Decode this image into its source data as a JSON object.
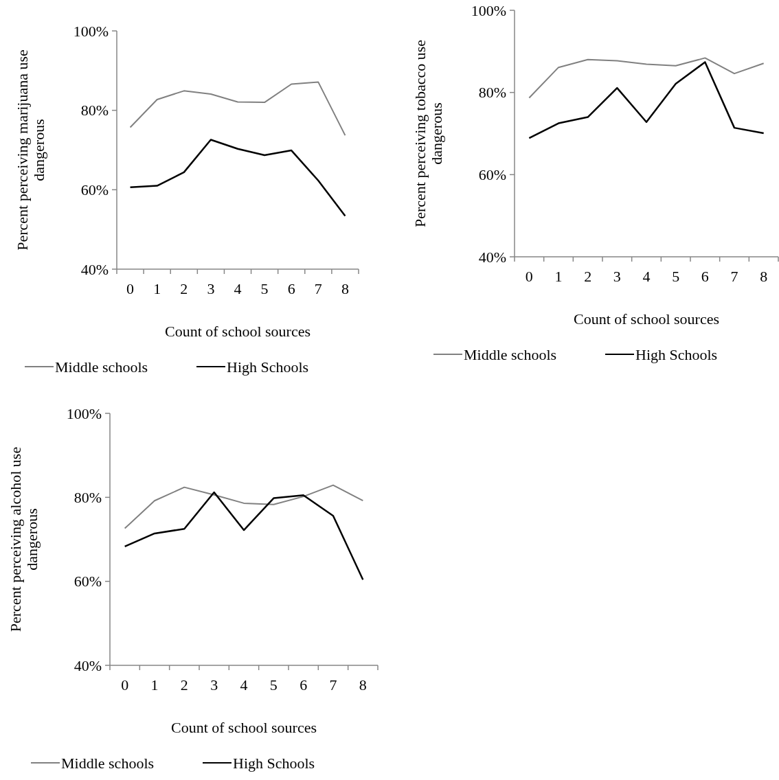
{
  "chart_data": [
    {
      "type": "line",
      "xlabel": "Count of school sources",
      "ylabel": "Percent perceiving marijuana use dangerous",
      "categories": [
        "0",
        "1",
        "2",
        "3",
        "4",
        "5",
        "6",
        "7",
        "8"
      ],
      "ylim": [
        40,
        100
      ],
      "yticks": [
        {
          "value": 40,
          "label": "40%"
        },
        {
          "value": 60,
          "label": "60%"
        },
        {
          "value": 80,
          "label": "80%"
        },
        {
          "value": 100,
          "label": "100%"
        }
      ],
      "legend": "bottom",
      "grid": false,
      "marker": "none",
      "series": [
        {
          "name": "Middle schools",
          "color": "#808080",
          "values": [
            75.7,
            82.7,
            84.9,
            84.1,
            82.1,
            82.0,
            86.6,
            87.1,
            73.7
          ]
        },
        {
          "name": "High Schools",
          "color": "#000000",
          "values": [
            60.6,
            61.0,
            64.4,
            72.6,
            70.3,
            68.7,
            69.9,
            62.3,
            53.4
          ]
        }
      ]
    },
    {
      "type": "line",
      "xlabel": "Count of school sources",
      "ylabel": "Percent perceiving tobacco use dangerous",
      "categories": [
        "0",
        "1",
        "2",
        "3",
        "4",
        "5",
        "6",
        "7",
        "8"
      ],
      "ylim": [
        40,
        100
      ],
      "yticks": [
        {
          "value": 40,
          "label": "40%"
        },
        {
          "value": 60,
          "label": "60%"
        },
        {
          "value": 80,
          "label": "80%"
        },
        {
          "value": 100,
          "label": "100%"
        }
      ],
      "legend": "bottom",
      "grid": false,
      "marker": "none",
      "series": [
        {
          "name": "Middle schools",
          "color": "#808080",
          "values": [
            78.7,
            86.1,
            88.0,
            87.7,
            86.9,
            86.5,
            88.4,
            84.6,
            87.1
          ]
        },
        {
          "name": "High Schools",
          "color": "#000000",
          "values": [
            68.9,
            72.5,
            74.0,
            81.1,
            72.8,
            82.1,
            87.4,
            71.4,
            70.1
          ]
        }
      ]
    },
    {
      "type": "line",
      "xlabel": "Count of school sources",
      "ylabel": "Percent perceiving alcohol use dangerous",
      "categories": [
        "0",
        "1",
        "2",
        "3",
        "4",
        "5",
        "6",
        "7",
        "8"
      ],
      "ylim": [
        40,
        100
      ],
      "yticks": [
        {
          "value": 40,
          "label": "40%"
        },
        {
          "value": 60,
          "label": "60%"
        },
        {
          "value": 80,
          "label": "80%"
        },
        {
          "value": 100,
          "label": "100%"
        }
      ],
      "legend": "bottom",
      "grid": false,
      "marker": "none",
      "series": [
        {
          "name": "Middle schools",
          "color": "#808080",
          "values": [
            72.6,
            79.2,
            82.4,
            80.6,
            78.6,
            78.3,
            80.2,
            82.9,
            79.2
          ]
        },
        {
          "name": "High Schools",
          "color": "#000000",
          "values": [
            68.3,
            71.4,
            72.5,
            81.2,
            72.2,
            79.8,
            80.5,
            75.6,
            60.4
          ]
        }
      ]
    }
  ]
}
